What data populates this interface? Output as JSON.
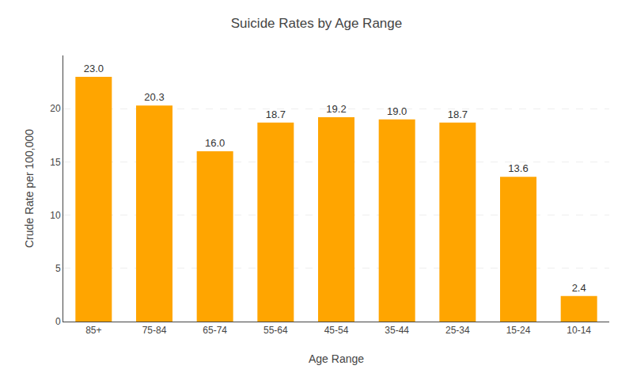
{
  "chart_data": {
    "type": "bar",
    "title": "Suicide Rates by Age Range",
    "xlabel": "Age Range",
    "ylabel": "Crude Rate per 100,000",
    "categories": [
      "85+",
      "75-84",
      "65-74",
      "55-64",
      "45-54",
      "35-44",
      "25-34",
      "15-24",
      "10-14"
    ],
    "values": [
      23.0,
      20.3,
      16.0,
      18.7,
      19.2,
      19.0,
      18.7,
      13.6,
      2.4
    ],
    "value_labels": [
      "23.0",
      "20.3",
      "16.0",
      "18.7",
      "19.2",
      "19.0",
      "18.7",
      "13.6",
      "2.4"
    ],
    "color": "#FFA500",
    "ylim": [
      0,
      25
    ],
    "yticks": [
      0,
      5,
      10,
      15,
      20
    ],
    "grid": true,
    "data_labels": true
  }
}
